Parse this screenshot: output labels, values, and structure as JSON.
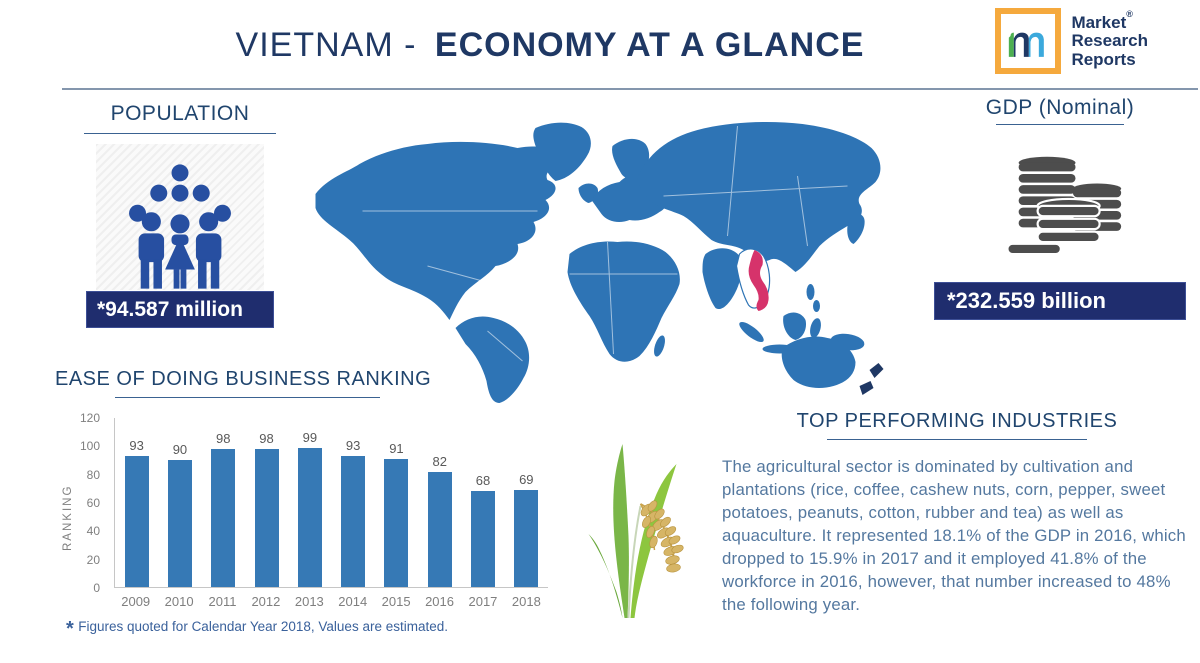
{
  "header": {
    "title_light": "VIETNAM -",
    "title_bold": "ECONOMY AT A GLANCE",
    "logo": {
      "line1": "Market",
      "line2": "Research",
      "line3": "Reports",
      "registered": "®"
    }
  },
  "population": {
    "heading": "POPULATION",
    "value": "*94.587 million"
  },
  "gdp": {
    "heading": "GDP (Nominal)",
    "value": "*232.559 billion"
  },
  "map": {
    "highlighted_country": "Vietnam"
  },
  "chart_data": {
    "type": "bar",
    "title": "EASE OF DOING BUSINESS RANKING",
    "categories": [
      "2009",
      "2010",
      "2011",
      "2012",
      "2013",
      "2014",
      "2015",
      "2016",
      "2017",
      "2018"
    ],
    "values": [
      93,
      90,
      98,
      98,
      99,
      93,
      91,
      82,
      68,
      69
    ],
    "xlabel": "",
    "ylabel": "RANKING",
    "ylim": [
      0,
      120
    ],
    "yticks": [
      0,
      20,
      40,
      60,
      80,
      100,
      120
    ],
    "bar_color": "#3679B5",
    "data_labels": true,
    "grid": false,
    "legend": false
  },
  "industries": {
    "heading": "TOP PERFORMING INDUSTRIES",
    "body": "The agricultural sector is dominated by cultivation and plantations (rice, coffee, cashew nuts, corn, pepper, sweet potatoes, peanuts, cotton, rubber and tea) as well as aquaculture. It represented 18.1% of the GDP in 2016, which dropped to 15.9% in 2017 and it employed 41.8% of the workforce in 2016, however, that number increased to 48% the following year."
  },
  "footnote": {
    "marker": "*",
    "text": "Figures quoted for Calendar Year 2018, Values are estimated."
  },
  "colors": {
    "title_navy": "#1F3864",
    "heading_navy": "#20456E",
    "badge_navy": "#1F2D6E",
    "bar_blue": "#3679B5",
    "map_blue": "#2E74B5",
    "body_blue": "#54789F",
    "icon_blue": "#274FA1",
    "coin_gray": "#4D4D4D",
    "logo_orange": "#F5A93D",
    "vietnam_red": "#D6336B"
  }
}
